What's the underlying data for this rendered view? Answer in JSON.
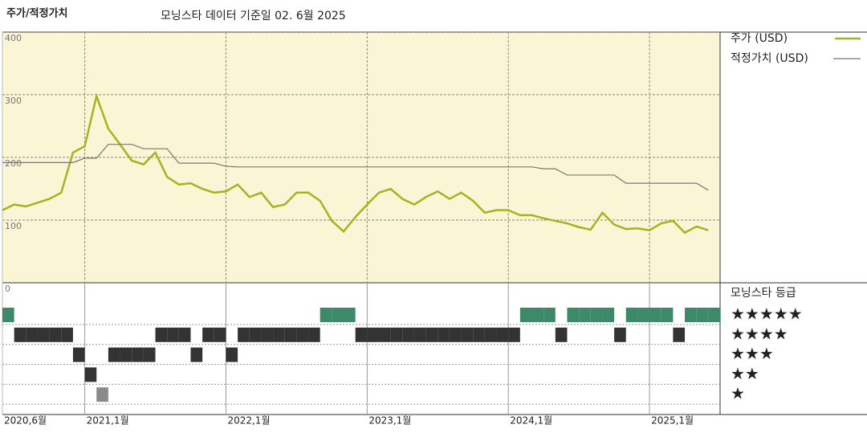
{
  "title": "주가/적정가치",
  "subtitle": "모닝스타 데이터 기준일 02. 6월 2025",
  "chart_data": [
    {
      "type": "line",
      "x": [
        "2020-06",
        "2020-07",
        "2020-08",
        "2020-09",
        "2020-10",
        "2020-11",
        "2020-12",
        "2021-01",
        "2021-02",
        "2021-03",
        "2021-04",
        "2021-05",
        "2021-06",
        "2021-07",
        "2021-08",
        "2021-09",
        "2021-10",
        "2021-11",
        "2021-12",
        "2022-01",
        "2022-02",
        "2022-03",
        "2022-04",
        "2022-05",
        "2022-06",
        "2022-07",
        "2022-08",
        "2022-09",
        "2022-10",
        "2022-11",
        "2022-12",
        "2023-01",
        "2023-02",
        "2023-03",
        "2023-04",
        "2023-05",
        "2023-06",
        "2023-07",
        "2023-08",
        "2023-09",
        "2023-10",
        "2023-11",
        "2023-12",
        "2024-01",
        "2024-02",
        "2024-03",
        "2024-04",
        "2024-05",
        "2024-06",
        "2024-07",
        "2024-08",
        "2024-09",
        "2024-10",
        "2024-11",
        "2024-12",
        "2025-01",
        "2025-02",
        "2025-03",
        "2025-04",
        "2025-05",
        "2025-06"
      ],
      "series": [
        {
          "name": "주가 (USD)",
          "color": "#a9b122",
          "values": [
            126,
            135,
            132,
            138,
            144,
            154,
            218,
            228,
            308,
            256,
            231,
            205,
            199,
            218,
            179,
            167,
            169,
            160,
            154,
            156,
            167,
            147,
            154,
            131,
            135,
            154,
            154,
            141,
            109,
            92,
            115,
            135,
            154,
            160,
            144,
            135,
            147,
            156,
            144,
            154,
            141,
            122,
            126,
            126,
            118,
            118,
            113,
            109,
            105,
            99,
            95,
            122,
            103,
            96,
            97,
            94,
            105,
            109,
            90,
            100,
            94
          ]
        },
        {
          "name": "적정가치 (USD)",
          "color": "#777777",
          "values": [
            202,
            202,
            202,
            202,
            202,
            202,
            202,
            209,
            209,
            231,
            231,
            231,
            224,
            224,
            224,
            201,
            201,
            201,
            201,
            196,
            195,
            195,
            195,
            195,
            195,
            195,
            195,
            195,
            195,
            195,
            195,
            195,
            195,
            195,
            195,
            195,
            195,
            195,
            195,
            195,
            195,
            195,
            195,
            195,
            195,
            195,
            192,
            192,
            182,
            182,
            182,
            182,
            182,
            169,
            169,
            169,
            169,
            169,
            169,
            169,
            158
          ]
        }
      ],
      "xlim": [
        "2020-06",
        "2025-07"
      ],
      "xticks": [
        {
          "value": "2020-06",
          "label": "2020,6월"
        },
        {
          "value": "2021-01",
          "label": "2021,1월"
        },
        {
          "value": "2022-01",
          "label": "2022,1월"
        },
        {
          "value": "2023-01",
          "label": "2023,1월"
        },
        {
          "value": "2024-01",
          "label": "2024,1월"
        },
        {
          "value": "2025-01",
          "label": "2025,1월"
        }
      ],
      "ylim": [
        0,
        410
      ],
      "yticks": [
        0,
        100,
        200,
        300,
        400
      ],
      "grid": true
    },
    {
      "type": "rating",
      "title": "모닝스타 등급",
      "categories": [
        "★★★★★",
        "★★★★",
        "★★★",
        "★★",
        "★"
      ],
      "colors": [
        "#3d8a6b",
        "#333333",
        "#333333",
        "#333333",
        "#8a8a8a"
      ],
      "x": [
        "2020-06",
        "2020-07",
        "2020-08",
        "2020-09",
        "2020-10",
        "2020-11",
        "2020-12",
        "2021-01",
        "2021-02",
        "2021-03",
        "2021-04",
        "2021-05",
        "2021-06",
        "2021-07",
        "2021-08",
        "2021-09",
        "2021-10",
        "2021-11",
        "2021-12",
        "2022-01",
        "2022-02",
        "2022-03",
        "2022-04",
        "2022-05",
        "2022-06",
        "2022-07",
        "2022-08",
        "2022-09",
        "2022-10",
        "2022-11",
        "2022-12",
        "2023-01",
        "2023-02",
        "2023-03",
        "2023-04",
        "2023-05",
        "2023-06",
        "2023-07",
        "2023-08",
        "2023-09",
        "2023-10",
        "2023-11",
        "2023-12",
        "2024-01",
        "2024-02",
        "2024-03",
        "2024-04",
        "2024-05",
        "2024-06",
        "2024-07",
        "2024-08",
        "2024-09",
        "2024-10",
        "2024-11",
        "2024-12",
        "2025-01",
        "2025-02",
        "2025-03",
        "2025-04",
        "2025-05",
        "2025-06"
      ],
      "values": [
        5,
        4,
        4,
        4,
        4,
        4,
        3,
        2,
        1,
        3,
        3,
        3,
        3,
        4,
        4,
        4,
        3,
        4,
        4,
        3,
        4,
        4,
        4,
        4,
        4,
        4,
        4,
        5,
        5,
        5,
        4,
        4,
        4,
        4,
        4,
        4,
        4,
        4,
        4,
        4,
        4,
        4,
        4,
        4,
        5,
        5,
        5,
        4,
        5,
        5,
        5,
        5,
        4,
        5,
        5,
        5,
        5,
        4,
        5,
        5,
        5
      ]
    }
  ]
}
